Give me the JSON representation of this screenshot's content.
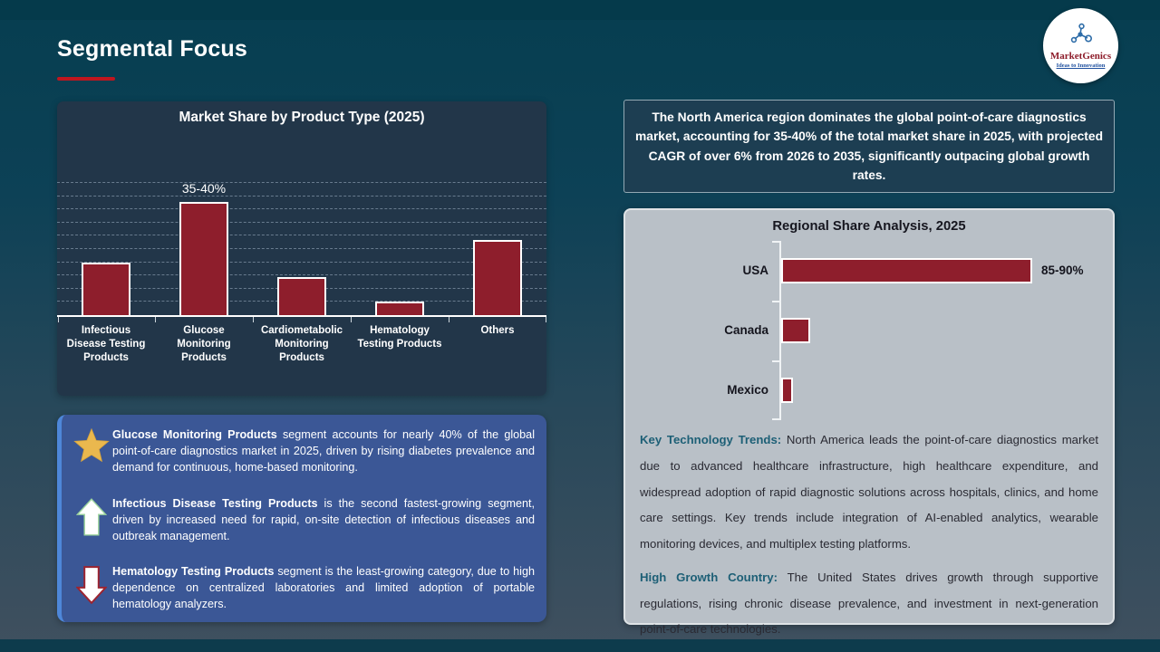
{
  "slide": {
    "title": "Segmental Focus",
    "logo": {
      "name": "MarketGenics",
      "tagline": "Ideas to Innovation"
    }
  },
  "colors": {
    "bar_maroon": "#8e1e2c",
    "title_underline_red": "#c0161f",
    "panel_dark_navy": "#223649",
    "insight_box_blue": "#3b5796",
    "insight_accent_blue": "#4e87d9",
    "headline_box_teal": "#1d3e52",
    "regional_panel_gray": "#b9c0c7",
    "lead_teal": "#1d5f76",
    "star_gold": "#eab84e"
  },
  "chart_data": [
    {
      "type": "bar",
      "orientation": "vertical",
      "title": "Market Share by Product Type (2025)",
      "categories": [
        "Infectious Disease Testing Products",
        "Glucose Monitoring Products",
        "Cardiometabolic Monitoring Products",
        "Hematology Testing Products",
        "Others"
      ],
      "values": [
        17.5,
        37.5,
        12.5,
        4.5,
        25
      ],
      "data_labels": [
        "",
        "35-40%",
        "",
        "",
        ""
      ],
      "unit": "percent",
      "ylim": [
        0,
        45
      ],
      "grid": true,
      "legend": "none"
    },
    {
      "type": "bar",
      "orientation": "horizontal",
      "title": "Regional Share Analysis, 2025",
      "categories": [
        "USA",
        "Canada",
        "Mexico"
      ],
      "values": [
        87.5,
        10,
        4
      ],
      "data_labels": [
        "85-90%",
        "",
        ""
      ],
      "unit": "percent",
      "xlim": [
        0,
        95
      ],
      "grid": false,
      "legend": "none"
    }
  ],
  "insights": [
    {
      "icon": "star-icon",
      "lead": "Glucose Monitoring Products",
      "text": " segment accounts for nearly 40% of the global point-of-care diagnostics market in 2025, driven by rising diabetes prevalence and demand for continuous, home-based monitoring."
    },
    {
      "icon": "up-arrow-icon",
      "lead": "Infectious Disease Testing Products",
      "text": " is the second fastest-growing segment, driven by increased need for rapid, on-site detection of infectious diseases and outbreak management."
    },
    {
      "icon": "down-arrow-icon",
      "lead": "Hematology Testing Products",
      "text": " segment is the least-growing category, due to high dependence on centralized laboratories and limited adoption of portable hematology analyzers."
    }
  ],
  "right": {
    "headline": "The North America region dominates the global point-of-care diagnostics market, accounting for 35-40% of the total market share in 2025, with projected CAGR of over 6% from 2026 to 2035, significantly outpacing global growth rates.",
    "paragraphs": [
      {
        "lead": "Key Technology Trends:",
        "text": " North America leads the point-of-care diagnostics market due to advanced healthcare infrastructure, high healthcare expenditure, and widespread adoption of rapid diagnostic solutions across hospitals, clinics, and home care settings. Key trends include integration of AI-enabled analytics, wearable monitoring devices, and multiplex testing platforms."
      },
      {
        "lead": "High Growth Country:",
        "text": " The United States drives growth through supportive regulations, rising chronic disease prevalence, and investment in next-generation point-of-care technologies."
      }
    ]
  }
}
